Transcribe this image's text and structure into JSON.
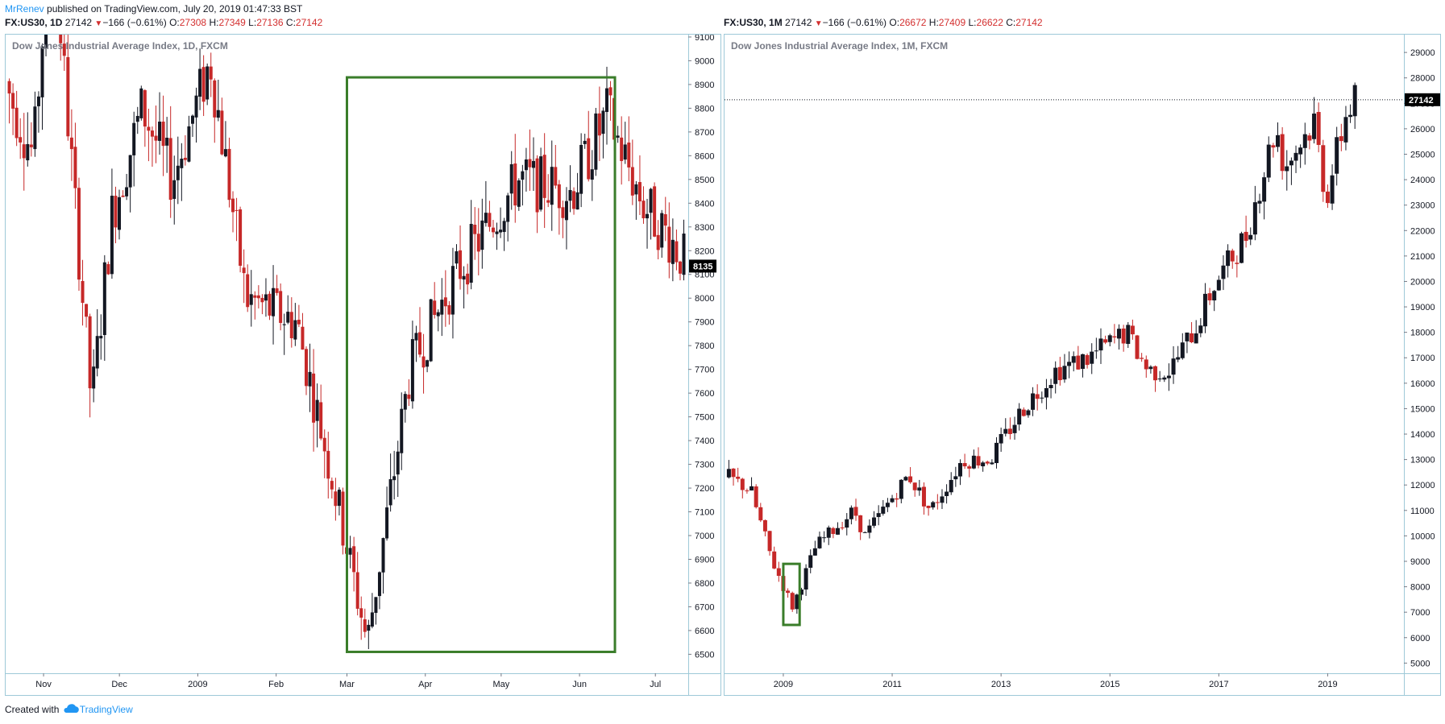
{
  "header": {
    "author": "MrRenev",
    "published_text": "published on TradingView.com, July 20, 2019 01:47:33 BST"
  },
  "left_symbol": {
    "symbol": "FX:US30, 1D",
    "price": "27142",
    "change": "−166 (−0.61%)",
    "o_label": "O:",
    "o": "27308",
    "h_label": "H:",
    "h": "27349",
    "l_label": "L:",
    "l": "27136",
    "c_label": "C:",
    "c": "27142"
  },
  "right_symbol": {
    "symbol": "FX:US30, 1M",
    "price": "27142",
    "change": "−166 (−0.61%)",
    "o_label": "O:",
    "o": "26672",
    "h_label": "H:",
    "h": "27409",
    "l_label": "L:",
    "l": "26622",
    "c_label": "C:",
    "c": "27142"
  },
  "footer": {
    "created_with": "Created with",
    "brand": "TradingView"
  },
  "colors": {
    "up": "#131722",
    "down": "#c62828",
    "box": "#3a7d2a",
    "border": "#9ec9d8",
    "link": "#2196f3"
  },
  "icons": {
    "brand_logo": "cloud-icon",
    "down_arrow": "triangle-down-icon"
  },
  "chart_data": [
    {
      "type": "candlestick",
      "title": "Dow Jones Industrial Average Index, 1D, FXCM",
      "x_tick_labels": [
        "Nov",
        "Dec",
        "2009",
        "Feb",
        "Mar",
        "Apr",
        "May",
        "Jun",
        "Jul"
      ],
      "x_tick_dates": [
        "2008-11-01",
        "2008-12-01",
        "2009-01-01",
        "2009-02-01",
        "2009-03-01",
        "2009-04-01",
        "2009-05-01",
        "2009-06-01",
        "2009-07-01"
      ],
      "x_range": [
        "2008-10-17",
        "2009-07-14"
      ],
      "y_range": [
        6420,
        9110
      ],
      "y_ticks": [
        6500,
        6600,
        6700,
        6800,
        6900,
        7000,
        7100,
        7200,
        7300,
        7400,
        7500,
        7600,
        7700,
        7800,
        7900,
        8000,
        8100,
        8200,
        8300,
        8400,
        8500,
        8600,
        8700,
        8800,
        8900,
        9000,
        9100
      ],
      "last_price_label": "8135",
      "last_price": 8135,
      "price_path_dates": [
        "2008-10-17",
        "2008-10-28",
        "2008-11-04",
        "2008-11-20",
        "2008-11-28",
        "2008-12-10",
        "2008-12-22",
        "2009-01-06",
        "2009-01-20",
        "2009-02-09",
        "2009-02-23",
        "2009-03-09",
        "2009-03-26",
        "2009-04-13",
        "2009-05-08",
        "2009-05-29",
        "2009-06-12",
        "2009-06-26",
        "2009-07-07",
        "2009-07-14"
      ],
      "price_path_values": [
        8900,
        8600,
        9600,
        7550,
        8350,
        8800,
        8500,
        9000,
        8000,
        7900,
        7250,
        6550,
        7700,
        8100,
        8500,
        8450,
        8780,
        8400,
        8250,
        8135
      ],
      "highlight_box": {
        "from": "2009-03-01",
        "to": "2009-06-15",
        "low": 6510,
        "high": 8930
      }
    },
    {
      "type": "candlestick",
      "title": "Dow Jones Industrial Average Index, 1M, FXCM",
      "x_tick_labels": [
        "2009",
        "2011",
        "2013",
        "2015",
        "2017",
        "2019"
      ],
      "x_tick_years": [
        2009,
        2011,
        2013,
        2015,
        2017,
        2019
      ],
      "x_range": [
        2007.92,
        2020.4
      ],
      "y_range": [
        4600,
        29700
      ],
      "y_ticks": [
        5000,
        6000,
        7000,
        8000,
        9000,
        10000,
        11000,
        12000,
        13000,
        14000,
        15000,
        16000,
        17000,
        18000,
        19000,
        20000,
        21000,
        22000,
        23000,
        24000,
        25000,
        26000,
        27000,
        28000,
        29000
      ],
      "last_price_label": "27142",
      "last_price": 27142,
      "price_path_years": [
        2008.0,
        2008.4,
        2008.8,
        2009.17,
        2009.6,
        2010.3,
        2010.5,
        2011.3,
        2011.7,
        2012.3,
        2012.8,
        2013.4,
        2014.0,
        2014.6,
        2015.3,
        2015.7,
        2016.1,
        2016.6,
        2016.9,
        2017.5,
        2018.05,
        2018.2,
        2018.75,
        2018.97,
        2019.35,
        2019.5
      ],
      "price_path_values": [
        12300,
        11800,
        9000,
        7200,
        9600,
        11000,
        10000,
        12400,
        11000,
        13000,
        13000,
        15000,
        16500,
        17000,
        18000,
        16500,
        16500,
        18300,
        19800,
        21800,
        26100,
        24500,
        26300,
        23300,
        26700,
        27142
      ],
      "highlight_box": {
        "from": 2009.0,
        "to": 2009.3,
        "low": 6500,
        "high": 8900
      }
    }
  ]
}
